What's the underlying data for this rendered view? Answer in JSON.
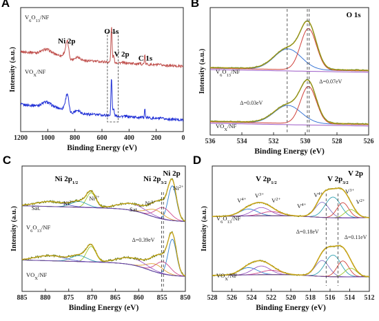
{
  "chart_data": [
    {
      "type": "line",
      "panel": "A",
      "xlabel": "Binding Energy (eV)",
      "ylabel": "Intensity (a.u.)",
      "xlim": [
        1200,
        0
      ],
      "xticks": [
        "1200",
        "1000",
        "800",
        "600",
        "400",
        "200",
        "0"
      ],
      "series": [
        {
          "name": "V6O13/NF",
          "color": "#c0504d"
        },
        {
          "name": "VOx/NF",
          "color": "#1f2fd6"
        }
      ],
      "annotations": [
        "Ni 2p",
        "O 1s",
        "V 2p",
        "C 1s"
      ],
      "labels": {
        "top": [
          "V",
          "6",
          "O",
          "13",
          "/NF"
        ],
        "bottom": [
          "VO",
          "X",
          "/NF"
        ]
      }
    },
    {
      "type": "line",
      "panel": "B",
      "title": "O 1s",
      "xlabel": "Binding Energy (eV)",
      "ylabel": "Intensity (a.u.)",
      "xlim": [
        536,
        526
      ],
      "xticks": [
        "536",
        "534",
        "532",
        "530",
        "528",
        "526"
      ],
      "peaks": [
        531.1,
        529.8
      ],
      "annotations": [
        "Δ=0.03eV",
        "Δ=0.07eV"
      ],
      "labels": {
        "top": [
          "V",
          "6",
          "O",
          "13",
          "/NF"
        ],
        "bottom": [
          "VO",
          "X",
          "/NF"
        ]
      }
    },
    {
      "type": "line",
      "panel": "C",
      "title": "Ni 2p",
      "xlabel": "Binding Energy (eV)",
      "ylabel": "Intensity (a.u.)",
      "xlim": [
        885,
        850
      ],
      "xticks": [
        "885",
        "880",
        "875",
        "870",
        "865",
        "860",
        "855",
        "850"
      ],
      "peak_labels": {
        "ni2p12": [
          "Ni 2p",
          "1/2"
        ],
        "ni2p32": [
          "Ni 2p",
          "3/2"
        ],
        "sat": "Sat.",
        "ni3": [
          "Ni",
          "3+"
        ],
        "ni2": [
          "Ni",
          "2+"
        ]
      },
      "annotations": [
        "Δ=0.39eV"
      ],
      "labels": {
        "top": [
          "V",
          "6",
          "O",
          "13",
          "/NF"
        ],
        "bottom": [
          "VO",
          "X",
          "/NF"
        ]
      }
    },
    {
      "type": "line",
      "panel": "D",
      "title": "V 2p",
      "xlabel": "Binding Energy (eV)",
      "ylabel": "Intensity (a.u.)",
      "xlim": [
        528,
        512
      ],
      "xticks": [
        "528",
        "526",
        "524",
        "522",
        "520",
        "518",
        "516",
        "514",
        "512"
      ],
      "peak_labels": {
        "v2p12": [
          "V 2p",
          "1/2"
        ],
        "v2p32": [
          "V 2p",
          "3/2"
        ],
        "v4": [
          "V",
          "4+"
        ],
        "v3": [
          "V",
          "3+"
        ],
        "v2": [
          "V",
          "2+"
        ]
      },
      "annotations": [
        "Δ=0.18eV",
        "Δ=0.11eV"
      ],
      "labels": {
        "top": [
          "V",
          "6",
          "O",
          "13",
          "/NF"
        ],
        "bottom": [
          "VO",
          "X",
          "/NF"
        ]
      }
    }
  ]
}
